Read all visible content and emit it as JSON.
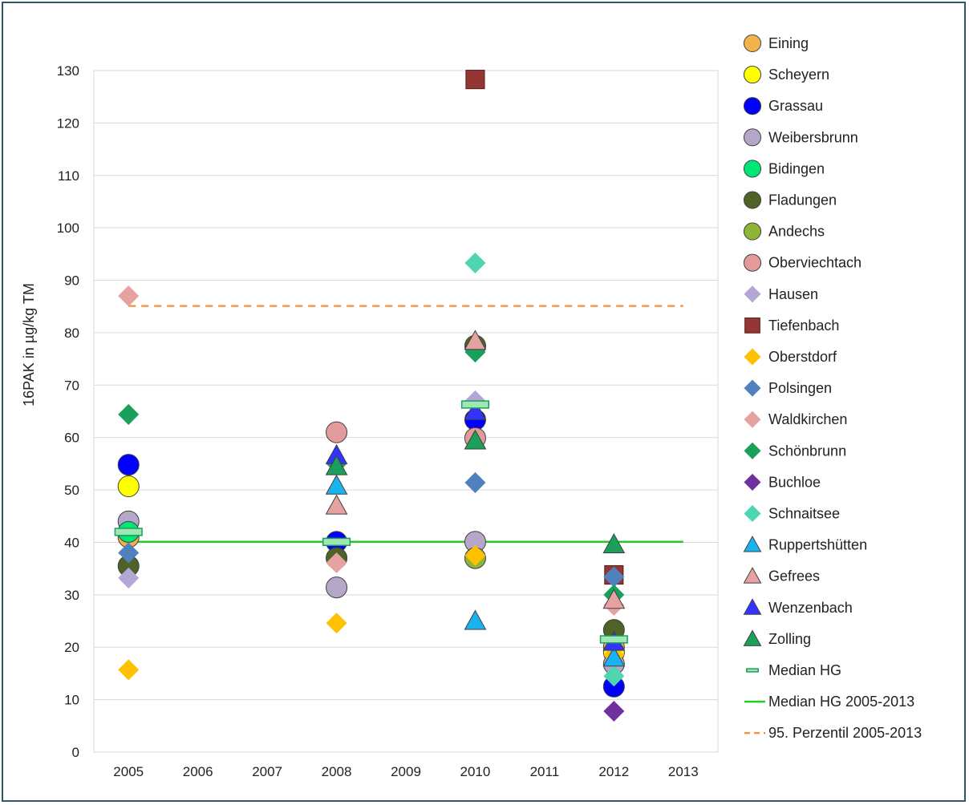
{
  "chart_data": {
    "type": "scatter",
    "title": "",
    "xlabel": "",
    "ylabel": "16PAK in µg/kg TM",
    "x_ticks": [
      "2005",
      "2006",
      "2007",
      "2008",
      "2009",
      "2010",
      "2011",
      "2012",
      "2013"
    ],
    "y_ticks": [
      "0",
      "10",
      "20",
      "30",
      "40",
      "50",
      "60",
      "70",
      "80",
      "90",
      "100",
      "110",
      "120",
      "130"
    ],
    "xlim": [
      2004.5,
      2013.5
    ],
    "ylim": [
      0,
      130
    ],
    "grid": "horizontal",
    "legend_position": "right",
    "series": [
      {
        "name": "Eining",
        "marker": "circle",
        "color": "#f4b24d",
        "points": [
          [
            2005,
            41
          ],
          [
            2012,
            20
          ]
        ]
      },
      {
        "name": "Scheyern",
        "marker": "circle",
        "color": "#ffff00",
        "points": [
          [
            2005,
            50.7
          ],
          [
            2012,
            19
          ]
        ]
      },
      {
        "name": "Grassau",
        "marker": "circle",
        "color": "#0000ff",
        "points": [
          [
            2005,
            54.8
          ],
          [
            2008,
            40.1
          ],
          [
            2010,
            63.4
          ],
          [
            2012,
            12.5
          ]
        ]
      },
      {
        "name": "Weibersbrunn",
        "marker": "circle",
        "color": "#b4a7c9",
        "points": [
          [
            2005,
            44
          ],
          [
            2008,
            31.4
          ],
          [
            2010,
            40.1
          ],
          [
            2012,
            16.8
          ]
        ]
      },
      {
        "name": "Bidingen",
        "marker": "circle",
        "color": "#00e676",
        "points": [
          [
            2005,
            42
          ]
        ]
      },
      {
        "name": "Fladungen",
        "marker": "circle",
        "color": "#4f6228",
        "points": [
          [
            2005,
            35.5
          ],
          [
            2008,
            37
          ],
          [
            2010,
            77.5
          ],
          [
            2012,
            23.3
          ]
        ]
      },
      {
        "name": "Andechs",
        "marker": "circle",
        "color": "#8db53a",
        "points": [
          [
            2010,
            37
          ]
        ]
      },
      {
        "name": "Oberviechtach",
        "marker": "circle",
        "color": "#e39a9a",
        "points": [
          [
            2008,
            61
          ],
          [
            2010,
            59.9
          ]
        ]
      },
      {
        "name": "Hausen",
        "marker": "diamond",
        "color": "#b4a7d6",
        "points": [
          [
            2005,
            33.2
          ],
          [
            2010,
            67
          ]
        ]
      },
      {
        "name": "Tiefenbach",
        "marker": "square",
        "color": "#943634",
        "points": [
          [
            2010,
            128.3
          ],
          [
            2012,
            33.8
          ]
        ]
      },
      {
        "name": "Oberstdorf",
        "marker": "diamond",
        "color": "#ffc000",
        "points": [
          [
            2005,
            15.7
          ],
          [
            2008,
            24.6
          ],
          [
            2010,
            37.5
          ],
          [
            2012,
            18.5
          ]
        ]
      },
      {
        "name": "Polsingen",
        "marker": "diamond",
        "color": "#4f81bd",
        "points": [
          [
            2005,
            38
          ],
          [
            2010,
            51.4
          ],
          [
            2012,
            33.4
          ]
        ]
      },
      {
        "name": "Waldkirchen",
        "marker": "diamond",
        "color": "#e6a1a1",
        "points": [
          [
            2005,
            87
          ],
          [
            2008,
            36.1
          ],
          [
            2012,
            28
          ]
        ]
      },
      {
        "name": "Schönbrunn",
        "marker": "diamond",
        "color": "#1aa05a",
        "points": [
          [
            2005,
            64.4
          ],
          [
            2008,
            55
          ],
          [
            2010,
            76.3
          ],
          [
            2012,
            30
          ]
        ]
      },
      {
        "name": "Buchloe",
        "marker": "diamond",
        "color": "#7030a0",
        "points": [
          [
            2012,
            7.8
          ]
        ]
      },
      {
        "name": "Schnaitsee",
        "marker": "diamond",
        "color": "#4ed6b0",
        "points": [
          [
            2010,
            93.3
          ],
          [
            2012,
            14.5
          ]
        ]
      },
      {
        "name": "Ruppertshütten",
        "marker": "triangle",
        "color": "#19b4f0",
        "points": [
          [
            2008,
            50.8
          ],
          [
            2010,
            25
          ],
          [
            2012,
            18
          ]
        ]
      },
      {
        "name": "Gefrees",
        "marker": "triangle",
        "color": "#e6a1a1",
        "points": [
          [
            2008,
            47
          ],
          [
            2010,
            78.4
          ],
          [
            2012,
            29
          ]
        ]
      },
      {
        "name": "Wenzenbach",
        "marker": "triangle",
        "color": "#3333ff",
        "points": [
          [
            2008,
            56.6
          ],
          [
            2010,
            65
          ],
          [
            2012,
            21
          ]
        ]
      },
      {
        "name": "Zolling",
        "marker": "triangle",
        "color": "#1aa05a",
        "points": [
          [
            2008,
            54.5
          ],
          [
            2010,
            59.4
          ],
          [
            2012,
            39.6
          ]
        ]
      },
      {
        "name": "Median HG",
        "marker": "bar",
        "color": "#9fe8b6",
        "stroke": "#1aa05a",
        "points": [
          [
            2005,
            42
          ],
          [
            2008,
            40.1
          ],
          [
            2010,
            66.3
          ],
          [
            2012,
            21.5
          ]
        ]
      }
    ],
    "lines": [
      {
        "name": "Median HG 2005-2013",
        "style": "solid",
        "color": "#22cc22",
        "y": 40.1,
        "x_range": [
          2005,
          2013
        ]
      },
      {
        "name": "95. Perzentil 2005-2013",
        "style": "dashed",
        "color": "#f79646",
        "y": 85.1,
        "x_range": [
          2005,
          2013
        ]
      }
    ]
  }
}
